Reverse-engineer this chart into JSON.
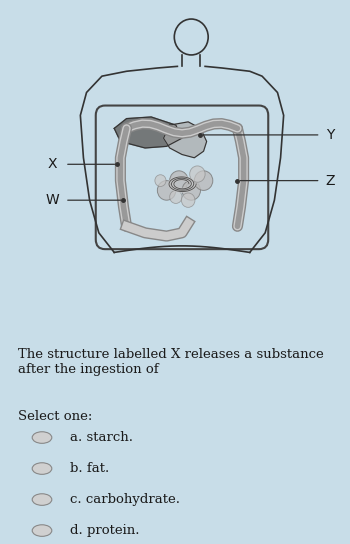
{
  "bg_color": "#c8dde8",
  "image_bg": "#ffffff",
  "question_text": "The structure labelled X releases a substance\nafter the ingestion of",
  "select_text": "Select one:",
  "options": [
    "a. starch.",
    "b. fat.",
    "c. carbohydrate.",
    "d. protein."
  ],
  "label_X": "X",
  "label_Y": "Y",
  "label_W": "W",
  "label_Z": "Z",
  "text_color": "#1a1a1a",
  "line_color": "#333333",
  "font_size_question": 9.5,
  "font_size_options": 9.5,
  "font_size_labels": 10
}
